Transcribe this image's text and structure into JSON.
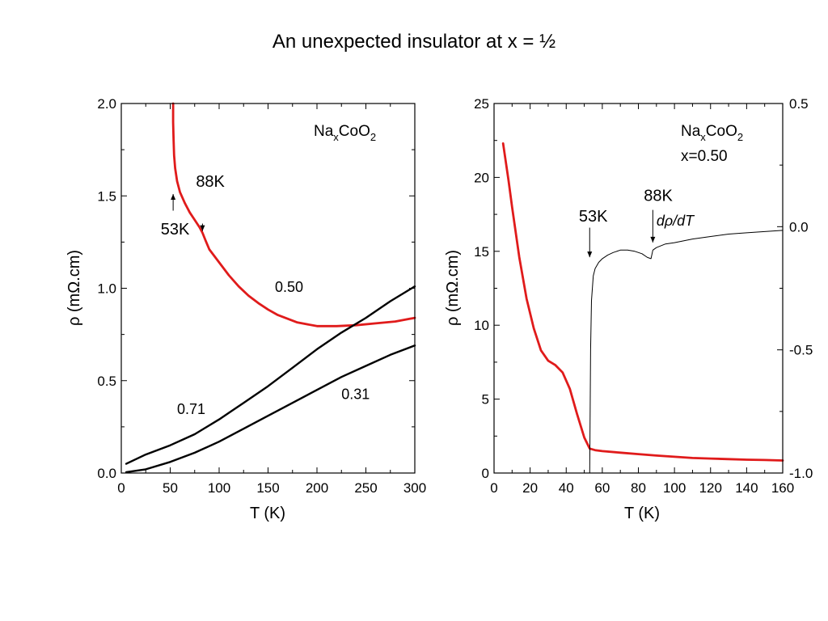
{
  "slide_title": "An unexpected insulator at x = ½",
  "colors": {
    "red": "#e01b1b",
    "black": "#000000"
  },
  "chart_data": [
    {
      "type": "line",
      "title": "",
      "xlabel": "T (K)",
      "ylabel": "ρ (mΩ.cm)",
      "xlim": [
        0,
        300
      ],
      "ylim": [
        0,
        2.0
      ],
      "xticks": [
        0,
        50,
        100,
        150,
        200,
        250,
        300
      ],
      "yticks": [
        0.0,
        0.5,
        1.0,
        1.5,
        2.0
      ],
      "xtick_labels": [
        "0",
        "50",
        "100",
        "150",
        "200",
        "250",
        "300"
      ],
      "ytick_labels": [
        "0.0",
        "0.5",
        "1.0",
        "1.5",
        "2.0"
      ],
      "grid": false,
      "compound": {
        "base": "Na",
        "sub1": "x",
        "mid": "CoO",
        "sub2": "2"
      },
      "annotations": [
        {
          "text": "88K",
          "x": 91,
          "y": 1.55,
          "arrow_from": [
            83,
            1.35
          ],
          "arrow_to": [
            83,
            1.31
          ]
        },
        {
          "text": "53K",
          "x": 55,
          "y": 1.29,
          "arrow_from": [
            53,
            1.42
          ],
          "arrow_to": [
            53,
            1.51
          ]
        }
      ],
      "series": [
        {
          "name": "0.50",
          "color": "#e01b1b",
          "label_at": [
            157,
            0.98
          ],
          "x": [
            53,
            53,
            53.5,
            54,
            55,
            57,
            60,
            65,
            70,
            75,
            80,
            83,
            86,
            90,
            100,
            110,
            120,
            130,
            140,
            150,
            160,
            180,
            200,
            220,
            240,
            260,
            280,
            300
          ],
          "y": [
            2.0,
            1.9,
            1.8,
            1.72,
            1.65,
            1.58,
            1.52,
            1.46,
            1.41,
            1.37,
            1.33,
            1.3,
            1.26,
            1.21,
            1.14,
            1.07,
            1.01,
            0.96,
            0.92,
            0.885,
            0.855,
            0.815,
            0.795,
            0.795,
            0.8,
            0.81,
            0.82,
            0.84
          ]
        },
        {
          "name": "0.71",
          "color": "#000000",
          "label_at": [
            57,
            0.32
          ],
          "x": [
            5,
            25,
            50,
            75,
            100,
            125,
            150,
            175,
            200,
            225,
            250,
            275,
            300
          ],
          "y": [
            0.05,
            0.1,
            0.15,
            0.21,
            0.29,
            0.38,
            0.47,
            0.57,
            0.67,
            0.76,
            0.84,
            0.93,
            1.01
          ]
        },
        {
          "name": "0.31",
          "color": "#000000",
          "label_at": [
            225,
            0.4
          ],
          "x": [
            5,
            25,
            50,
            75,
            100,
            125,
            150,
            175,
            200,
            225,
            250,
            275,
            300
          ],
          "y": [
            0.005,
            0.02,
            0.06,
            0.11,
            0.17,
            0.24,
            0.31,
            0.38,
            0.45,
            0.52,
            0.58,
            0.64,
            0.69
          ]
        }
      ]
    },
    {
      "type": "line",
      "title": "",
      "xlabel": "T (K)",
      "ylabel": "ρ (mΩ.cm)",
      "xlim": [
        0,
        160
      ],
      "ylim": [
        0,
        25
      ],
      "y2lim": [
        -1.0,
        0.5
      ],
      "xticks": [
        0,
        20,
        40,
        60,
        80,
        100,
        120,
        140,
        160
      ],
      "yticks": [
        0,
        5,
        10,
        15,
        20,
        25
      ],
      "y2ticks": [
        -1.0,
        -0.5,
        0.0,
        0.5
      ],
      "xtick_labels": [
        "0",
        "20",
        "40",
        "60",
        "80",
        "100",
        "120",
        "140",
        "160"
      ],
      "ytick_labels": [
        "0",
        "5",
        "10",
        "15",
        "20",
        "25"
      ],
      "y2tick_labels": [
        "-1.0",
        "-0.5",
        "0.0",
        "0.5"
      ],
      "grid": false,
      "compound": {
        "base": "Na",
        "sub1": "x",
        "mid": "CoO",
        "sub2": "2"
      },
      "composition_label": "x=0.50",
      "annotations": [
        {
          "text": "53K",
          "x": 55,
          "y": 17.0,
          "arrow_from": [
            53,
            16.6
          ],
          "arrow_to": [
            53,
            14.6
          ]
        },
        {
          "text": "88K",
          "x": 91,
          "y": 18.4,
          "arrow_from": [
            88,
            17.8
          ],
          "arrow_to": [
            88,
            15.6
          ]
        }
      ],
      "series": [
        {
          "name": "",
          "axis": "left",
          "color": "#e01b1b",
          "x": [
            5,
            8,
            10,
            14,
            18,
            22,
            26,
            30,
            34,
            38,
            42,
            46,
            50,
            53,
            56,
            60,
            70,
            80,
            90,
            100,
            110,
            120,
            130,
            140,
            150,
            160
          ],
          "y": [
            22.3,
            19.8,
            18.0,
            14.6,
            11.8,
            9.8,
            8.3,
            7.6,
            7.3,
            6.8,
            5.7,
            4.0,
            2.4,
            1.65,
            1.55,
            1.48,
            1.38,
            1.28,
            1.18,
            1.1,
            1.02,
            0.98,
            0.94,
            0.9,
            0.88,
            0.85
          ]
        },
        {
          "name": "dρ/dT",
          "axis": "right",
          "color": "#000000",
          "label_at": [
            90,
            0.005
          ],
          "x": [
            53,
            53.5,
            54,
            55,
            56,
            58,
            60,
            63,
            66,
            70,
            74,
            78,
            82,
            85,
            87,
            88,
            90,
            95,
            100,
            110,
            120,
            130,
            140,
            150,
            160
          ],
          "y": [
            -1.0,
            -0.5,
            -0.3,
            -0.2,
            -0.17,
            -0.145,
            -0.13,
            -0.115,
            -0.105,
            -0.095,
            -0.095,
            -0.1,
            -0.11,
            -0.125,
            -0.13,
            -0.095,
            -0.085,
            -0.07,
            -0.065,
            -0.05,
            -0.04,
            -0.03,
            -0.025,
            -0.02,
            -0.015
          ]
        }
      ]
    }
  ]
}
